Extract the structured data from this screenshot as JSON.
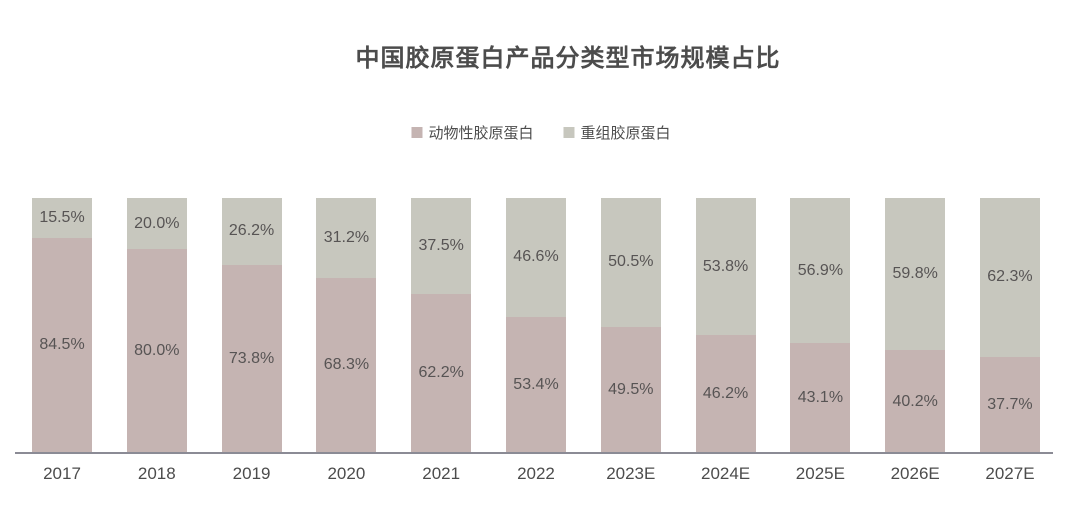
{
  "title": "中国胶原蛋白产品分类型市场规模占比",
  "legend": [
    {
      "label": "动物性胶原蛋白",
      "color": "#c5b4b2"
    },
    {
      "label": "重组胶原蛋白",
      "color": "#c7c7be"
    }
  ],
  "colors": {
    "background": "#ffffff",
    "animal_series": "#c5b4b2",
    "recombinant_series": "#c7c7be",
    "axis_line": "#8b8b95",
    "value_label": "#575454",
    "title_text": "#4c4c4c"
  },
  "chart_data": {
    "type": "bar",
    "stacked": true,
    "title": "中国胶原蛋白产品分类型市场规模占比",
    "xlabel": "",
    "ylabel": "",
    "ylim": [
      0,
      100
    ],
    "grid": false,
    "legend_position": "top",
    "value_suffix": "%",
    "categories": [
      "2017",
      "2018",
      "2019",
      "2020",
      "2021",
      "2022",
      "2023E",
      "2024E",
      "2025E",
      "2026E",
      "2027E"
    ],
    "series": [
      {
        "name": "动物性胶原蛋白",
        "color": "#c5b4b2",
        "position": "bottom",
        "values": [
          84.5,
          80.0,
          73.8,
          68.3,
          62.2,
          53.4,
          49.5,
          46.2,
          43.1,
          40.2,
          37.7
        ]
      },
      {
        "name": "重组胶原蛋白",
        "color": "#c7c7be",
        "position": "top",
        "values": [
          15.5,
          20.0,
          26.2,
          31.2,
          37.5,
          46.6,
          50.5,
          53.8,
          56.9,
          59.8,
          62.3
        ]
      }
    ]
  }
}
